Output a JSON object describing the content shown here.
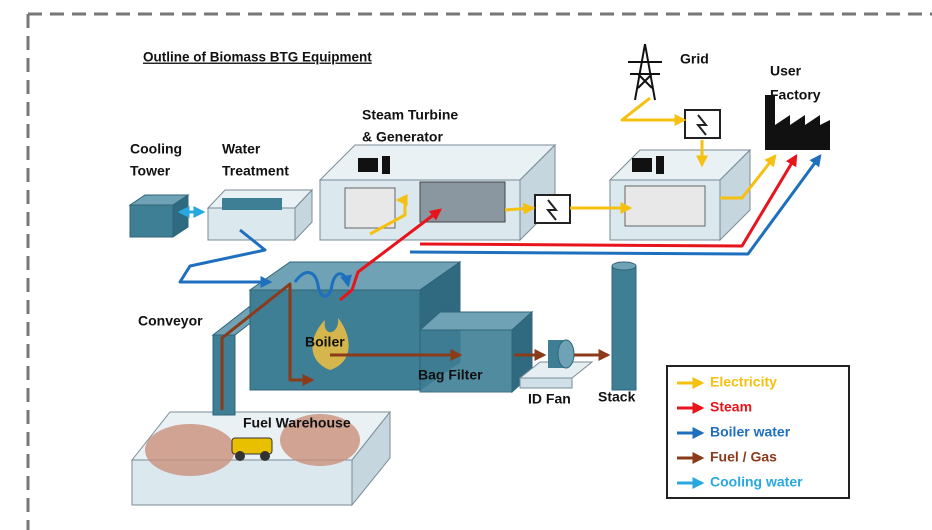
{
  "title": "Outline of Biomass BTG Equipment",
  "nodes": [
    {
      "label": [
        "Grid"
      ]
    },
    {
      "label": [
        "User",
        "Factory"
      ]
    },
    {
      "label": [
        "Steam Turbine",
        "& Generator"
      ]
    },
    {
      "label": [
        "Cooling",
        "Tower"
      ]
    },
    {
      "label": [
        "Water",
        "Treatment"
      ]
    },
    {
      "label": [
        "Conveyor"
      ]
    },
    {
      "label": [
        "Boiler"
      ]
    },
    {
      "label": [
        "Bag Filter"
      ]
    },
    {
      "label": [
        "ID Fan"
      ]
    },
    {
      "label": [
        "Stack"
      ]
    },
    {
      "label": [
        "Fuel Warehouse"
      ]
    }
  ],
  "legend": [
    {
      "label": "Electricity",
      "color": "#f5c010"
    },
    {
      "label": "Steam",
      "color": "#e8141c"
    },
    {
      "label": "Boiler water",
      "color": "#1f6fbf"
    },
    {
      "label": "Fuel / Gas",
      "color": "#8b3a1a"
    },
    {
      "label": "Cooling water",
      "color": "#29a8e0"
    }
  ]
}
